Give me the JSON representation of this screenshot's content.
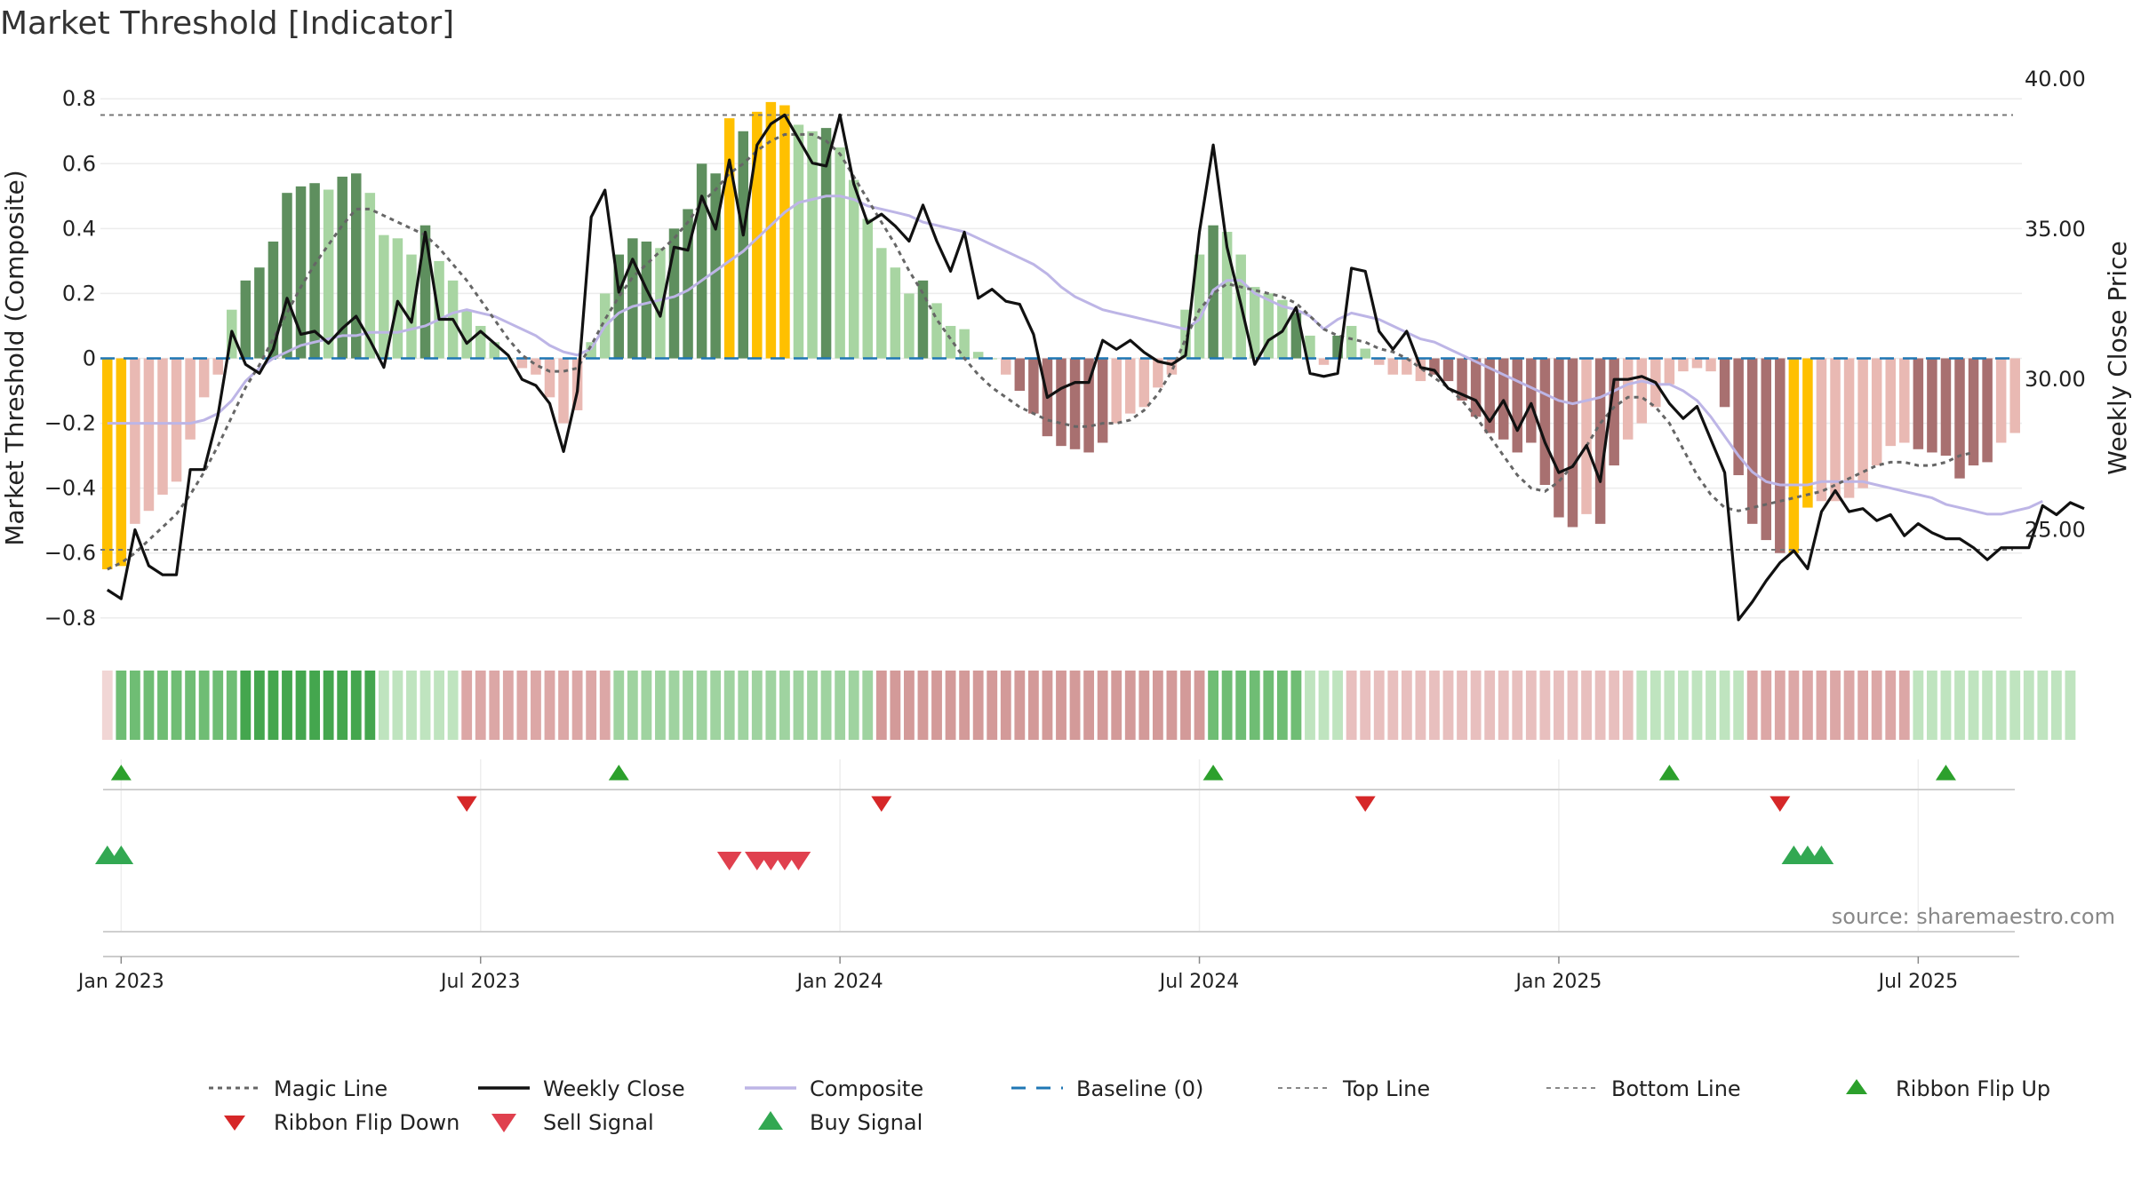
{
  "title": "Market Threshold [Indicator]",
  "source": "source: sharemaestro.com",
  "colors": {
    "gold": "#FFC000",
    "green_dark": "#5E8F5E",
    "green_light": "#A8D5A2",
    "red_dark": "#A87070",
    "red_light": "#E9B9B3",
    "close": "#111111",
    "composite": "#BDB5E6",
    "magic": "#666666",
    "baseline": "#1F77B4",
    "signal_up": "#2CA02C",
    "signal_down": "#D62728",
    "sell": "#E0404E",
    "buy": "#32A852"
  },
  "chart_data": {
    "type": "bar",
    "title": "Market Threshold [Indicator]",
    "ylabel_left": "Market Threshold (Composite)",
    "ylabel_right": "Weekly Close Price",
    "ylim_left": [
      -0.88,
      0.88
    ],
    "ylim_right": [
      21.2,
      40.2
    ],
    "left_ticks": [
      {
        "v": 0.8,
        "label": "0.8"
      },
      {
        "v": 0.6,
        "label": "0.6"
      },
      {
        "v": 0.4,
        "label": "0.4"
      },
      {
        "v": 0.2,
        "label": "0.2"
      },
      {
        "v": 0,
        "label": "0"
      },
      {
        "v": -0.2,
        "label": "−0.2"
      },
      {
        "v": -0.4,
        "label": "−0.4"
      },
      {
        "v": -0.6,
        "label": "−0.6"
      },
      {
        "v": -0.8,
        "label": "−0.8"
      }
    ],
    "right_ticks": [
      {
        "v": 40,
        "label": "40.00"
      },
      {
        "v": 35,
        "label": "35.00"
      },
      {
        "v": 30,
        "label": "30.00"
      },
      {
        "v": 25,
        "label": "25.00"
      }
    ],
    "x_ticks": [
      {
        "w": 1,
        "label": "Jan 2023"
      },
      {
        "w": 27,
        "label": "Jul 2023"
      },
      {
        "w": 53,
        "label": "Jan 2024"
      },
      {
        "w": 79,
        "label": "Jul 2024"
      },
      {
        "w": 105,
        "label": "Jan 2025"
      },
      {
        "w": 131,
        "label": "Jul 2025"
      }
    ],
    "top_line": 0.75,
    "bottom_line": -0.59,
    "bar_values": [
      -0.65,
      -0.64,
      -0.51,
      -0.47,
      -0.42,
      -0.38,
      -0.25,
      -0.12,
      -0.05,
      0.15,
      0.24,
      0.28,
      0.36,
      0.51,
      0.53,
      0.54,
      0.52,
      0.56,
      0.57,
      0.51,
      0.38,
      0.37,
      0.32,
      0.41,
      0.3,
      0.24,
      0.15,
      0.1,
      0.05,
      0,
      -0.03,
      -0.05,
      -0.12,
      -0.2,
      -0.16,
      0.05,
      0.2,
      0.32,
      0.37,
      0.36,
      0.34,
      0.4,
      0.46,
      0.6,
      0.57,
      0.74,
      0.7,
      0.76,
      0.79,
      0.78,
      0.72,
      0.7,
      0.71,
      0.65,
      0.55,
      0.43,
      0.34,
      0.28,
      0.2,
      0.24,
      0.17,
      0.1,
      0.09,
      0.02,
      0,
      -0.05,
      -0.1,
      -0.17,
      -0.24,
      -0.27,
      -0.28,
      -0.29,
      -0.26,
      -0.2,
      -0.17,
      -0.15,
      -0.09,
      -0.05,
      0.15,
      0.32,
      0.41,
      0.39,
      0.32,
      0.22,
      0.2,
      0.18,
      0.14,
      0.07,
      -0.02,
      0.07,
      0.1,
      0.03,
      -0.02,
      -0.05,
      -0.05,
      -0.07,
      -0.05,
      -0.07,
      -0.13,
      -0.18,
      -0.23,
      -0.25,
      -0.29,
      -0.26,
      -0.39,
      -0.49,
      -0.52,
      -0.48,
      -0.51,
      -0.33,
      -0.25,
      -0.2,
      -0.15,
      -0.08,
      -0.04,
      -0.03,
      -0.04,
      -0.15,
      -0.36,
      -0.51,
      -0.56,
      -0.6,
      -0.6,
      -0.46,
      -0.44,
      -0.44,
      -0.43,
      -0.4,
      -0.33,
      -0.27,
      -0.26,
      -0.28,
      -0.29,
      -0.3,
      -0.37,
      -0.33,
      -0.32,
      -0.26,
      -0.23
    ],
    "gold_bars": [
      0,
      1,
      45,
      47,
      48,
      49,
      122,
      123
    ],
    "dark_bars": [
      10,
      11,
      12,
      13,
      14,
      15,
      17,
      18,
      23,
      37,
      38,
      39,
      41,
      42,
      43,
      44,
      46,
      52,
      59,
      66,
      67,
      68,
      69,
      70,
      71,
      72,
      80,
      86,
      89,
      96,
      97,
      98,
      99,
      100,
      101,
      102,
      103,
      104,
      105,
      106,
      108,
      109,
      117,
      118,
      119,
      120,
      121,
      131,
      132,
      133,
      134,
      135,
      136
    ],
    "close_values": [
      23.0,
      22.7,
      25.0,
      23.8,
      23.5,
      23.5,
      27.0,
      27.0,
      28.8,
      31.6,
      30.5,
      30.2,
      31.0,
      32.7,
      31.5,
      31.6,
      31.2,
      31.7,
      32.1,
      31.3,
      30.4,
      32.6,
      31.9,
      34.9,
      32.0,
      32.0,
      31.2,
      31.6,
      31.2,
      30.8,
      30.0,
      29.8,
      29.2,
      27.6,
      29.6,
      35.4,
      36.3,
      32.9,
      34.0,
      33.0,
      32.1,
      34.4,
      34.3,
      36.1,
      35.0,
      37.3,
      34.8,
      37.8,
      38.5,
      38.8,
      38.0,
      37.2,
      37.1,
      38.8,
      36.5,
      35.2,
      35.5,
      35.1,
      34.6,
      35.8,
      34.6,
      33.6,
      34.9,
      32.7,
      33.0,
      32.6,
      32.5,
      31.5,
      29.4,
      29.7,
      29.9,
      29.9,
      31.3,
      31.0,
      31.3,
      30.9,
      30.6,
      30.5,
      30.8,
      34.9,
      37.8,
      34.4,
      32.5,
      30.5,
      31.3,
      31.6,
      32.4,
      30.2,
      30.1,
      30.2,
      33.7,
      33.6,
      31.6,
      31.0,
      31.6,
      30.4,
      30.3,
      29.7,
      29.5,
      29.3,
      28.6,
      29.3,
      28.3,
      29.2,
      27.9,
      26.9,
      27.1,
      27.8,
      26.6,
      30.0,
      30.0,
      30.1,
      29.9,
      29.2,
      28.7,
      29.1,
      28.0,
      26.9,
      22.0,
      22.6,
      23.3,
      23.9,
      24.3,
      23.7,
      25.6,
      26.3,
      25.6,
      25.7,
      25.3,
      25.5,
      24.8,
      25.2,
      24.9,
      24.7,
      24.7,
      24.4,
      24.0,
      24.4,
      24.4,
      24.4,
      25.8,
      25.5,
      25.9,
      25.7
    ],
    "composite_values": [
      -0.2,
      -0.2,
      -0.2,
      -0.2,
      -0.2,
      -0.2,
      -0.2,
      -0.19,
      -0.17,
      -0.13,
      -0.07,
      -0.03,
      0,
      0.02,
      0.04,
      0.05,
      0.06,
      0.07,
      0.07,
      0.08,
      0.08,
      0.08,
      0.09,
      0.1,
      0.12,
      0.14,
      0.15,
      0.14,
      0.13,
      0.11,
      0.09,
      0.07,
      0.04,
      0.02,
      0.01,
      0.03,
      0.1,
      0.14,
      0.16,
      0.17,
      0.18,
      0.19,
      0.21,
      0.24,
      0.27,
      0.3,
      0.33,
      0.37,
      0.41,
      0.45,
      0.48,
      0.49,
      0.5,
      0.5,
      0.49,
      0.47,
      0.46,
      0.45,
      0.44,
      0.42,
      0.41,
      0.4,
      0.39,
      0.37,
      0.35,
      0.33,
      0.31,
      0.29,
      0.26,
      0.22,
      0.19,
      0.17,
      0.15,
      0.14,
      0.13,
      0.12,
      0.11,
      0.1,
      0.09,
      0.12,
      0.21,
      0.24,
      0.24,
      0.2,
      0.18,
      0.16,
      0.15,
      0.13,
      0.09,
      0.12,
      0.14,
      0.13,
      0.12,
      0.1,
      0.08,
      0.06,
      0.05,
      0.03,
      0.01,
      -0.01,
      -0.03,
      -0.05,
      -0.07,
      -0.09,
      -0.11,
      -0.13,
      -0.14,
      -0.13,
      -0.12,
      -0.1,
      -0.08,
      -0.07,
      -0.08,
      -0.08,
      -0.1,
      -0.13,
      -0.18,
      -0.24,
      -0.3,
      -0.35,
      -0.38,
      -0.39,
      -0.39,
      -0.39,
      -0.38,
      -0.38,
      -0.38,
      -0.38,
      -0.39,
      -0.4,
      -0.41,
      -0.42,
      -0.43,
      -0.45,
      -0.46,
      -0.47,
      -0.48,
      -0.48,
      -0.47,
      -0.46,
      -0.44
    ],
    "magic_values": [
      -0.65,
      -0.63,
      -0.6,
      -0.56,
      -0.52,
      -0.48,
      -0.42,
      -0.35,
      -0.27,
      -0.18,
      -0.09,
      -0.02,
      0.06,
      0.14,
      0.22,
      0.29,
      0.35,
      0.41,
      0.46,
      0.46,
      0.44,
      0.42,
      0.4,
      0.38,
      0.34,
      0.29,
      0.24,
      0.18,
      0.12,
      0.06,
      0.01,
      -0.02,
      -0.04,
      -0.04,
      -0.03,
      0.04,
      0.12,
      0.19,
      0.25,
      0.29,
      0.33,
      0.37,
      0.42,
      0.48,
      0.52,
      0.57,
      0.6,
      0.64,
      0.67,
      0.69,
      0.69,
      0.69,
      0.67,
      0.63,
      0.56,
      0.49,
      0.42,
      0.35,
      0.27,
      0.2,
      0.12,
      0.06,
      0,
      -0.05,
      -0.09,
      -0.12,
      -0.15,
      -0.17,
      -0.19,
      -0.2,
      -0.21,
      -0.21,
      -0.2,
      -0.2,
      -0.19,
      -0.16,
      -0.11,
      -0.04,
      0.06,
      0.15,
      0.2,
      0.23,
      0.22,
      0.21,
      0.2,
      0.19,
      0.17,
      0.13,
      0.09,
      0.07,
      0.06,
      0.05,
      0.03,
      0.02,
      0,
      -0.03,
      -0.06,
      -0.09,
      -0.13,
      -0.18,
      -0.24,
      -0.3,
      -0.36,
      -0.4,
      -0.41,
      -0.38,
      -0.33,
      -0.27,
      -0.2,
      -0.15,
      -0.12,
      -0.12,
      -0.15,
      -0.2,
      -0.28,
      -0.36,
      -0.42,
      -0.46,
      -0.47,
      -0.46,
      -0.45,
      -0.44,
      -0.43,
      -0.42,
      -0.41,
      -0.39,
      -0.37,
      -0.35,
      -0.33,
      -0.32,
      -0.32,
      -0.33,
      -0.33,
      -0.32,
      -0.3,
      -0.29
    ],
    "ribbon_segments": [
      {
        "start": 0,
        "end": 0,
        "type": "red",
        "level": 1
      },
      {
        "start": 1,
        "end": 9,
        "type": "green",
        "level": 4
      },
      {
        "start": 10,
        "end": 19,
        "type": "green",
        "level": 5
      },
      {
        "start": 20,
        "end": 25,
        "type": "green",
        "level": 2
      },
      {
        "start": 26,
        "end": 36,
        "type": "red",
        "level": 3
      },
      {
        "start": 37,
        "end": 55,
        "type": "green",
        "level": 3
      },
      {
        "start": 56,
        "end": 79,
        "type": "red",
        "level": 4
      },
      {
        "start": 80,
        "end": 86,
        "type": "green",
        "level": 4
      },
      {
        "start": 87,
        "end": 89,
        "type": "green",
        "level": 2
      },
      {
        "start": 90,
        "end": 110,
        "type": "red",
        "level": 2
      },
      {
        "start": 111,
        "end": 118,
        "type": "green",
        "level": 2
      },
      {
        "start": 119,
        "end": 130,
        "type": "red",
        "level": 3
      },
      {
        "start": 131,
        "end": 142,
        "type": "green",
        "level": 2
      }
    ],
    "ribbon_flip_up": [
      1,
      37,
      80,
      113,
      133
    ],
    "ribbon_flip_down": [
      26,
      56,
      91,
      121
    ],
    "sell_signals": [
      45,
      47,
      48,
      49,
      50
    ],
    "buy_signals": [
      0,
      1,
      122,
      123,
      124
    ],
    "legend": [
      {
        "key": "magic",
        "label": "Magic Line"
      },
      {
        "key": "close",
        "label": "Weekly Close"
      },
      {
        "key": "composite",
        "label": "Composite"
      },
      {
        "key": "baseline",
        "label": "Baseline (0)"
      },
      {
        "key": "top",
        "label": "Top Line"
      },
      {
        "key": "bottom",
        "label": "Bottom Line"
      },
      {
        "key": "flipup",
        "label": "Ribbon Flip Up"
      },
      {
        "key": "flipdown",
        "label": "Ribbon Flip Down"
      },
      {
        "key": "sell",
        "label": "Sell Signal"
      },
      {
        "key": "buy",
        "label": "Buy Signal"
      }
    ]
  }
}
